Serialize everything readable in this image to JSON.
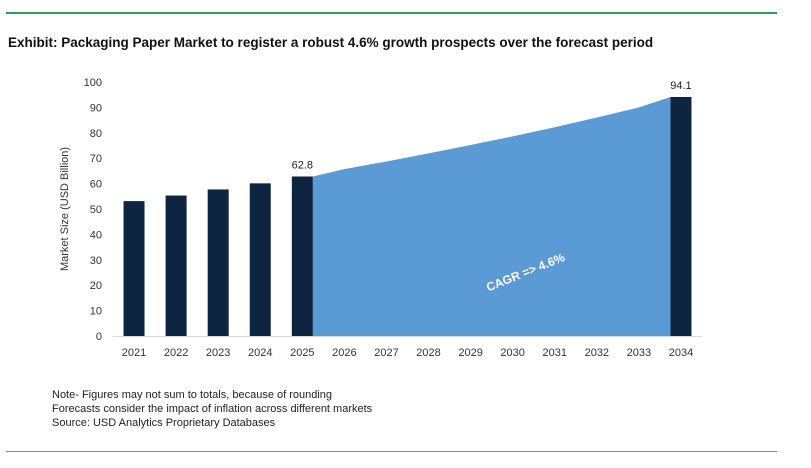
{
  "title": "Exhibit: Packaging Paper Market to register a robust 4.6% growth prospects over the forecast period",
  "chart_data": {
    "type": "bar",
    "categories": [
      "2021",
      "2022",
      "2023",
      "2024",
      "2025",
      "2026",
      "2027",
      "2028",
      "2029",
      "2030",
      "2031",
      "2032",
      "2033",
      "2034"
    ],
    "values": [
      53.1,
      55.3,
      57.7,
      60.1,
      62.8,
      65.7,
      68.7,
      71.9,
      75.2,
      78.6,
      82.2,
      86.0,
      90.0,
      94.1
    ],
    "bar_categories": [
      "2021",
      "2022",
      "2023",
      "2024",
      "2025",
      "2034"
    ],
    "data_labels": [
      {
        "category": "2025",
        "text": "62.8"
      },
      {
        "category": "2034",
        "text": "94.1"
      }
    ],
    "ylabel": "Market Size (USD Billion)",
    "xlabel": "",
    "ylim": [
      0,
      100
    ],
    "yticks": [
      0,
      10,
      20,
      30,
      40,
      50,
      60,
      70,
      80,
      90,
      100
    ],
    "grid": false,
    "forecast_area": {
      "from": "2025",
      "to": "2034",
      "label": "CAGR => 4.6%"
    },
    "colors": {
      "bar": "#0d2540",
      "area": "#5b9bd5",
      "area_label": "#ffffff"
    }
  },
  "notes": [
    "Note- Figures may not sum to totals, because of rounding",
    "Forecasts consider the impact of inflation across different markets",
    "Source: USD Analytics Proprietary Databases"
  ]
}
